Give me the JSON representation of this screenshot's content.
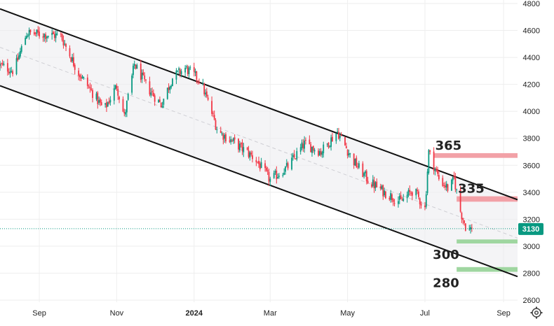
{
  "chart_data": {
    "type": "candlestick",
    "x_ticks": [
      "Sep",
      "Nov",
      "2024",
      "Mar",
      "May",
      "Jul",
      "Sep"
    ],
    "y_ticks": [
      2600,
      2800,
      3000,
      3200,
      3400,
      3600,
      3800,
      4000,
      4200,
      4400,
      4600,
      4800
    ],
    "ylim": [
      2560,
      4800
    ],
    "last_price": "3130",
    "last_price_value": 3130,
    "channel": {
      "upper": {
        "from": {
          "x": "2023-08-01",
          "y": 4760
        },
        "to": {
          "x": "2024-09-12",
          "y": 3345
        }
      },
      "lower": {
        "from": {
          "x": "2023-08-01",
          "y": 4190
        },
        "to": {
          "x": "2024-09-12",
          "y": 2775
        }
      },
      "mid": {
        "from": {
          "x": "2023-08-01",
          "y": 4475
        },
        "to": {
          "x": "2024-09-12",
          "y": 3060
        }
      }
    },
    "zones": [
      {
        "label": "365",
        "low": 3655,
        "high": 3690,
        "color": "#f2a1a7",
        "from": "2024-07-08",
        "to": "2024-09-12"
      },
      {
        "label": "335",
        "low": 3330,
        "high": 3370,
        "color": "#f2a1a7",
        "from": "2024-07-26",
        "to": "2024-09-12"
      },
      {
        "label": "300",
        "low": 3020,
        "high": 3050,
        "color": "#9fd6a0",
        "from": "2024-07-26",
        "to": "2024-09-12"
      },
      {
        "label": "280",
        "low": 2810,
        "high": 2845,
        "color": "#9fd6a0",
        "from": "2024-07-26",
        "to": "2024-09-12"
      }
    ],
    "price_path": [
      {
        "x": "2023-08-01",
        "y": 4340
      },
      {
        "x": "2023-08-12",
        "y": 4300
      },
      {
        "x": "2023-08-22",
        "y": 4580
      },
      {
        "x": "2023-09-05",
        "y": 4570
      },
      {
        "x": "2023-09-18",
        "y": 4560
      },
      {
        "x": "2023-10-01",
        "y": 4300
      },
      {
        "x": "2023-10-12",
        "y": 4150
      },
      {
        "x": "2023-10-22",
        "y": 4010
      },
      {
        "x": "2023-11-01",
        "y": 4190
      },
      {
        "x": "2023-11-07",
        "y": 3960
      },
      {
        "x": "2023-11-15",
        "y": 4350
      },
      {
        "x": "2023-11-25",
        "y": 4180
      },
      {
        "x": "2023-12-06",
        "y": 4050
      },
      {
        "x": "2023-12-15",
        "y": 4250
      },
      {
        "x": "2023-12-25",
        "y": 4320
      },
      {
        "x": "2024-01-06",
        "y": 4230
      },
      {
        "x": "2024-01-20",
        "y": 3850
      },
      {
        "x": "2024-02-03",
        "y": 3760
      },
      {
        "x": "2024-02-18",
        "y": 3650
      },
      {
        "x": "2024-03-01",
        "y": 3490
      },
      {
        "x": "2024-03-15",
        "y": 3590
      },
      {
        "x": "2024-03-28",
        "y": 3760
      },
      {
        "x": "2024-04-10",
        "y": 3700
      },
      {
        "x": "2024-04-23",
        "y": 3850
      },
      {
        "x": "2024-05-05",
        "y": 3640
      },
      {
        "x": "2024-05-18",
        "y": 3480
      },
      {
        "x": "2024-05-30",
        "y": 3400
      },
      {
        "x": "2024-06-12",
        "y": 3330
      },
      {
        "x": "2024-06-22",
        "y": 3420
      },
      {
        "x": "2024-07-01",
        "y": 3280
      },
      {
        "x": "2024-07-04",
        "y": 3700
      },
      {
        "x": "2024-07-12",
        "y": 3500
      },
      {
        "x": "2024-07-20",
        "y": 3420
      },
      {
        "x": "2024-07-24",
        "y": 3500
      },
      {
        "x": "2024-07-29",
        "y": 3260
      },
      {
        "x": "2024-08-03",
        "y": 3120
      },
      {
        "x": "2024-08-07",
        "y": 3130
      }
    ]
  }
}
